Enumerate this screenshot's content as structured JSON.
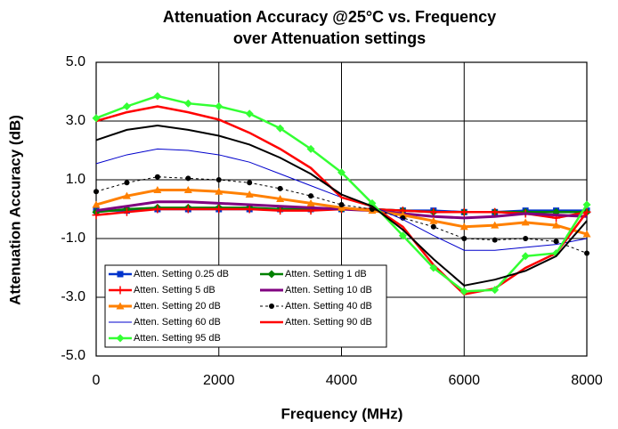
{
  "chart_data": {
    "type": "line",
    "title": [
      "Attenuation Accuracy @25°C vs. Frequency",
      "over Attenuation settings"
    ],
    "x_label": "Frequency (MHz)",
    "y_label": "Attenuation Accuracy (dB)",
    "x": [
      0,
      500,
      1000,
      1500,
      2000,
      2500,
      3000,
      3500,
      4000,
      4500,
      5000,
      5500,
      6000,
      6500,
      7000,
      7500,
      8000
    ],
    "xlim": [
      0,
      8000
    ],
    "xticks": [
      0,
      2000,
      4000,
      6000,
      8000
    ],
    "ylim": [
      -5,
      5
    ],
    "yticks": [
      {
        "value": 5,
        "label": "5.0"
      },
      {
        "value": 3,
        "label": "3.0"
      },
      {
        "value": 1,
        "label": "1.0"
      },
      {
        "value": -1,
        "label": "-1.0"
      },
      {
        "value": -3,
        "label": "-3.0"
      },
      {
        "value": -5,
        "label": "-5.0"
      }
    ],
    "grid": true,
    "series": [
      {
        "name": "Atten. Setting 0.25 dB",
        "color": "#0033cc",
        "marker": "square",
        "width": 2.5,
        "values": [
          -0.05,
          -0.05,
          0,
          0,
          0,
          0,
          0,
          0,
          0,
          0,
          -0.05,
          -0.05,
          -0.1,
          -0.1,
          -0.05,
          -0.05,
          -0.05
        ]
      },
      {
        "name": "Atten. Setting 1 dB",
        "color": "#008000",
        "marker": "diamond",
        "width": 2.5,
        "values": [
          -0.1,
          0,
          0.05,
          0.05,
          0.05,
          0.05,
          0,
          0,
          0,
          0,
          -0.05,
          -0.1,
          -0.1,
          -0.1,
          -0.1,
          -0.1,
          -0.1
        ]
      },
      {
        "name": "Atten. Setting 5 dB",
        "color": "#ff0000",
        "marker": "plus",
        "width": 2.5,
        "values": [
          -0.2,
          -0.1,
          0,
          0,
          0,
          0,
          -0.05,
          -0.05,
          0,
          0,
          -0.05,
          -0.1,
          -0.1,
          -0.1,
          -0.15,
          -0.3,
          -0.1
        ]
      },
      {
        "name": "Atten. Setting 10 dB",
        "color": "#800080",
        "marker": "none",
        "width": 3,
        "values": [
          -0.05,
          0.1,
          0.25,
          0.25,
          0.2,
          0.15,
          0.1,
          0.05,
          0,
          -0.05,
          -0.15,
          -0.25,
          -0.3,
          -0.25,
          -0.15,
          -0.2,
          -0.25
        ]
      },
      {
        "name": "Atten. Setting 20 dB",
        "color": "#ff8000",
        "marker": "triangle",
        "width": 3,
        "values": [
          0.15,
          0.45,
          0.65,
          0.65,
          0.6,
          0.5,
          0.35,
          0.2,
          0.05,
          -0.05,
          -0.2,
          -0.4,
          -0.6,
          -0.55,
          -0.45,
          -0.55,
          -0.85
        ]
      },
      {
        "name": "Atten. Setting 40 dB",
        "color": "#000000",
        "marker": "circle",
        "width": 1,
        "dash": true,
        "values": [
          0.6,
          0.9,
          1.1,
          1.05,
          1.0,
          0.9,
          0.7,
          0.45,
          0.15,
          0,
          -0.3,
          -0.6,
          -1.0,
          -1.05,
          -1.0,
          -1.1,
          -1.5
        ]
      },
      {
        "name": "Atten. Setting 60 dB",
        "color": "#0000cc",
        "marker": "none",
        "width": 1,
        "values": [
          1.55,
          1.85,
          2.05,
          2.0,
          1.85,
          1.6,
          1.2,
          0.8,
          0.4,
          0.1,
          -0.35,
          -0.9,
          -1.4,
          -1.4,
          -1.3,
          -1.2,
          -1.0
        ]
      },
      {
        "name": "Atten. Setting 90 dB",
        "color": "#ff0000",
        "marker": "none",
        "width": 2.5,
        "values": [
          3.0,
          3.3,
          3.5,
          3.3,
          3.05,
          2.6,
          2.05,
          1.4,
          0.4,
          0.1,
          -0.6,
          -1.9,
          -2.9,
          -2.7,
          -2.0,
          -1.5,
          -0.1
        ]
      },
      {
        "name": "Atten. Setting 95 dB",
        "color": "#33ff33",
        "marker": "diamond",
        "width": 2.5,
        "values": [
          3.1,
          3.5,
          3.85,
          3.6,
          3.5,
          3.25,
          2.75,
          2.05,
          1.25,
          0.2,
          -0.9,
          -2.0,
          -2.8,
          -2.75,
          -1.6,
          -1.5,
          0.15
        ]
      },
      {
        "color": "#000000",
        "marker": "none",
        "width": 2,
        "values": [
          2.35,
          2.7,
          2.85,
          2.7,
          2.5,
          2.2,
          1.75,
          1.2,
          0.5,
          0.1,
          -0.7,
          -1.7,
          -2.6,
          -2.4,
          -2.1,
          -1.6,
          -0.4
        ]
      }
    ]
  }
}
